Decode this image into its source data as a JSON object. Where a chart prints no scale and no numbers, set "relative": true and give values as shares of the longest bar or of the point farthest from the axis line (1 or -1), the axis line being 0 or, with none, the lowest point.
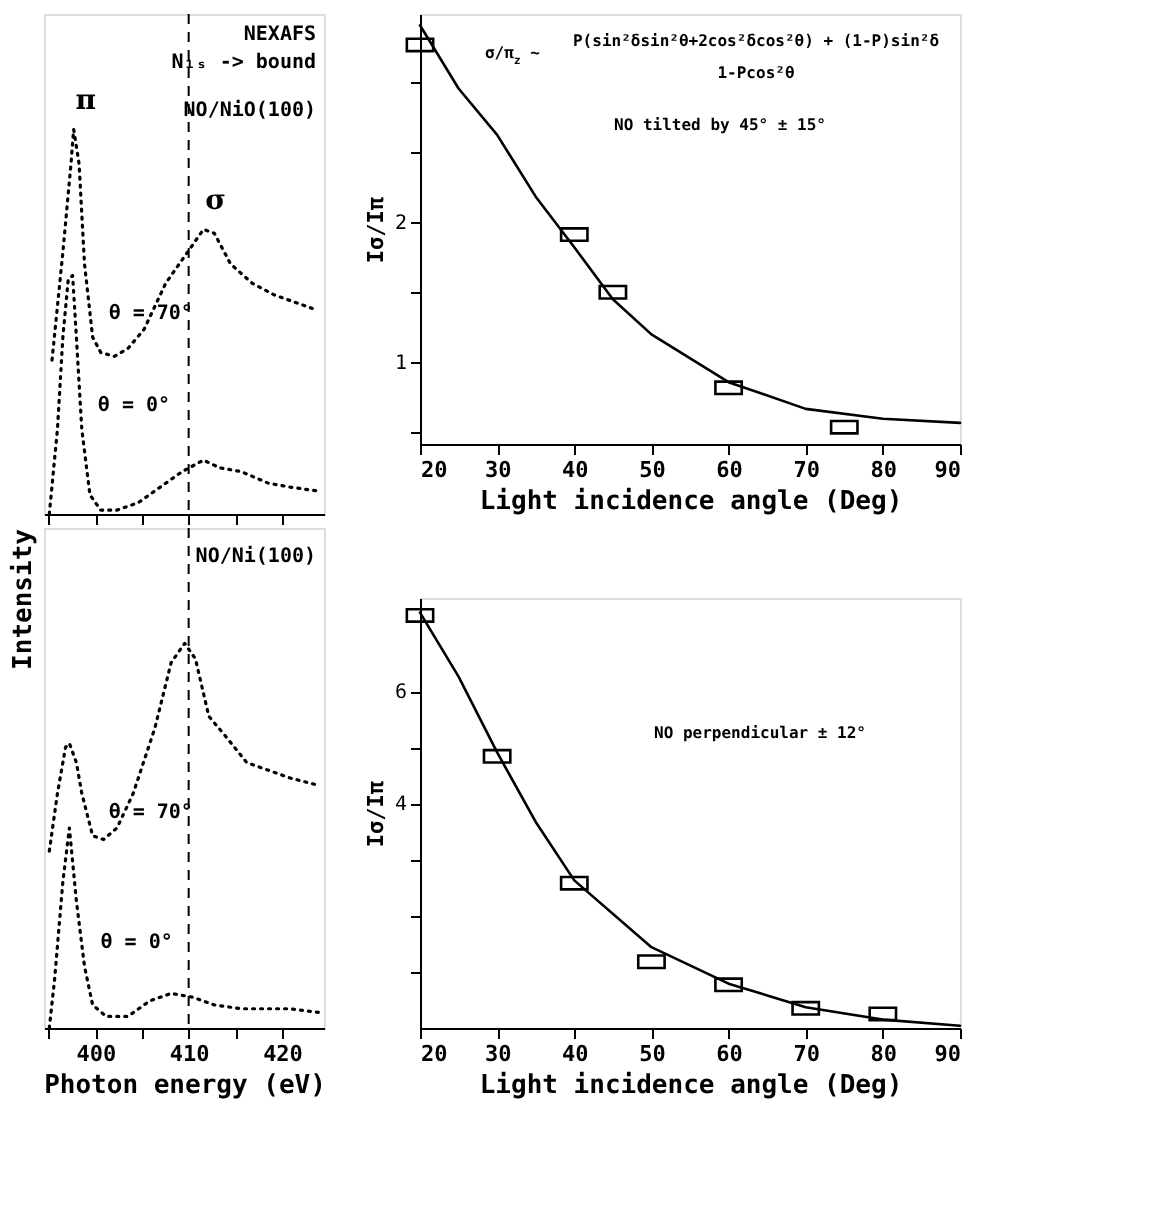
{
  "chart_data": [
    {
      "type": "line",
      "relative": true,
      "tick_labels": false,
      "line_style": "dotted",
      "xlim": [
        394.5,
        424.5
      ],
      "xticks": [
        {
          "value": 395,
          "label": null
        },
        400,
        {
          "value": 405,
          "label": null
        },
        410,
        {
          "value": 415,
          "label": null
        },
        420
      ],
      "annotations": [
        "NEXAFS",
        "N₁ₛ -> bound",
        "NO/NiO(100)",
        {
          "text": "π",
          "x": 397.68,
          "y": 1.0
        },
        {
          "text": "σ",
          "x": 411.59,
          "y": 0.74
        }
      ],
      "ref_lines": [
        {
          "axis": "x",
          "value": 410,
          "line_style": "dashed"
        }
      ],
      "series": [
        {
          "name": "θ = 70°",
          "color": "#000000",
          "x": [
            395.36,
            396.52,
            397.39,
            397.68,
            398.26,
            398.84,
            399.71,
            400.58,
            402.03,
            403.48,
            405.22,
            407.54,
            409.86,
            411.59,
            412.75,
            414.49,
            416.81,
            419.13,
            421.45,
            423.77
          ],
          "values": [
            0.4,
            0.68,
            0.91,
            1.0,
            0.91,
            0.65,
            0.46,
            0.42,
            0.41,
            0.43,
            0.48,
            0.6,
            0.68,
            0.74,
            0.73,
            0.65,
            0.6,
            0.57,
            0.55,
            0.53
          ]
        },
        {
          "name": "θ = 0°",
          "color": "#000000",
          "x": [
            395.07,
            395.94,
            396.52,
            397.1,
            397.57,
            397.97,
            398.55,
            399.42,
            400.58,
            402.32,
            404.64,
            406.96,
            409.28,
            411.59,
            413.33,
            415.65,
            418.55,
            420.87,
            423.77
          ],
          "values": [
            0.0,
            0.22,
            0.46,
            0.61,
            0.62,
            0.46,
            0.22,
            0.05,
            0.01,
            0.01,
            0.03,
            0.07,
            0.11,
            0.14,
            0.12,
            0.11,
            0.08,
            0.07,
            0.06
          ]
        }
      ]
    },
    {
      "type": "line",
      "relative": true,
      "tick_labels": "x",
      "line_style": "dotted",
      "xlim": [
        394.5,
        424.5
      ],
      "xticks": [
        {
          "value": 395,
          "label": null
        },
        400,
        {
          "value": 405,
          "label": null
        },
        410,
        {
          "value": 415,
          "label": null
        },
        420
      ],
      "xlabel": "Photon energy (eV)",
      "ylabel": "Intensity",
      "annotations": [
        "NO/Ni(100)"
      ],
      "ref_lines": [
        {
          "axis": "x",
          "value": 410,
          "line_style": "dashed"
        }
      ],
      "series": [
        {
          "name": "θ = 70°",
          "color": "#000000",
          "x": [
            395.07,
            395.94,
            396.81,
            397.22,
            397.97,
            398.55,
            399.71,
            400.87,
            402.32,
            404.06,
            406.38,
            408.12,
            409.57,
            410.72,
            412.17,
            413.91,
            416.23,
            418.55,
            420.87,
            424.06
          ],
          "values": [
            0.46,
            0.61,
            0.73,
            0.74,
            0.69,
            0.61,
            0.5,
            0.49,
            0.52,
            0.61,
            0.78,
            0.95,
            1.0,
            0.96,
            0.81,
            0.76,
            0.69,
            0.67,
            0.65,
            0.63
          ]
        },
        {
          "name": "θ = 0°",
          "color": "#000000",
          "x": [
            395.07,
            395.65,
            396.52,
            397.22,
            397.97,
            398.84,
            399.71,
            401.16,
            403.48,
            405.8,
            408.12,
            410.43,
            412.75,
            415.65,
            418.55,
            420.87,
            424.06
          ],
          "values": [
            0.0,
            0.13,
            0.38,
            0.52,
            0.33,
            0.16,
            0.06,
            0.03,
            0.03,
            0.07,
            0.09,
            0.08,
            0.06,
            0.05,
            0.05,
            0.05,
            0.04
          ]
        }
      ]
    },
    {
      "type": "scatter",
      "xlim": [
        20,
        90
      ],
      "ylim": [
        0.42,
        3.48
      ],
      "xticks": [
        20,
        30,
        40,
        50,
        60,
        70,
        80,
        90
      ],
      "yticks": [
        {
          "value": 0.5,
          "label": null
        },
        1,
        {
          "value": 1.5,
          "label": null
        },
        2,
        {
          "value": 2.5,
          "label": null
        },
        {
          "value": 3,
          "label": null
        }
      ],
      "xlabel": "Light incidence angle (Deg)",
      "ylabel": "Iσ/Iπ",
      "annotations": [
        "σ/π$_{z}$ ~",
        "P(sin²δsin²θ+2cos²δcos²θ) + (1-P)sin²δ",
        "1-Pcos²θ",
        "NO tilted by 45° ± 15°"
      ],
      "series": [
        {
          "color": "#000000",
          "marker": "square",
          "x": [
            20,
            40,
            45,
            60,
            75
          ],
          "values": [
            3.26,
            1.91,
            1.5,
            0.82,
            0.54
          ]
        },
        {
          "type": "line",
          "color": "#000000",
          "x": [
            20,
            25,
            30,
            35,
            40,
            45,
            50,
            60,
            70,
            80,
            90
          ],
          "values": [
            3.4,
            2.95,
            2.62,
            2.18,
            1.82,
            1.45,
            1.2,
            0.86,
            0.67,
            0.6,
            0.57
          ]
        }
      ]
    },
    {
      "type": "scatter",
      "xlim": [
        20,
        90
      ],
      "ylim": [
        0,
        7.66
      ],
      "xticks": [
        20,
        30,
        40,
        50,
        60,
        70,
        80,
        90
      ],
      "yticks": [
        {
          "value": 1,
          "label": null
        },
        {
          "value": 2,
          "label": null
        },
        {
          "value": 3,
          "label": null
        },
        4,
        {
          "value": 5,
          "label": null
        },
        6
      ],
      "xlabel": "Light incidence angle (Deg)",
      "ylabel": "Iσ/Iπ",
      "annotations": [
        "NO perpendicular ± 12°"
      ],
      "series": [
        {
          "color": "#000000",
          "marker": "square",
          "x": [
            20,
            30,
            40,
            50,
            60,
            70,
            80
          ],
          "values": [
            7.35,
            4.84,
            2.58,
            1.18,
            0.77,
            0.35,
            0.25
          ]
        },
        {
          "type": "line",
          "color": "#000000",
          "x": [
            20,
            25,
            30,
            35,
            40,
            50,
            60,
            70,
            80,
            90
          ],
          "values": [
            7.4,
            6.26,
            4.91,
            3.67,
            2.63,
            1.44,
            0.79,
            0.37,
            0.15,
            0.04
          ]
        }
      ]
    }
  ]
}
